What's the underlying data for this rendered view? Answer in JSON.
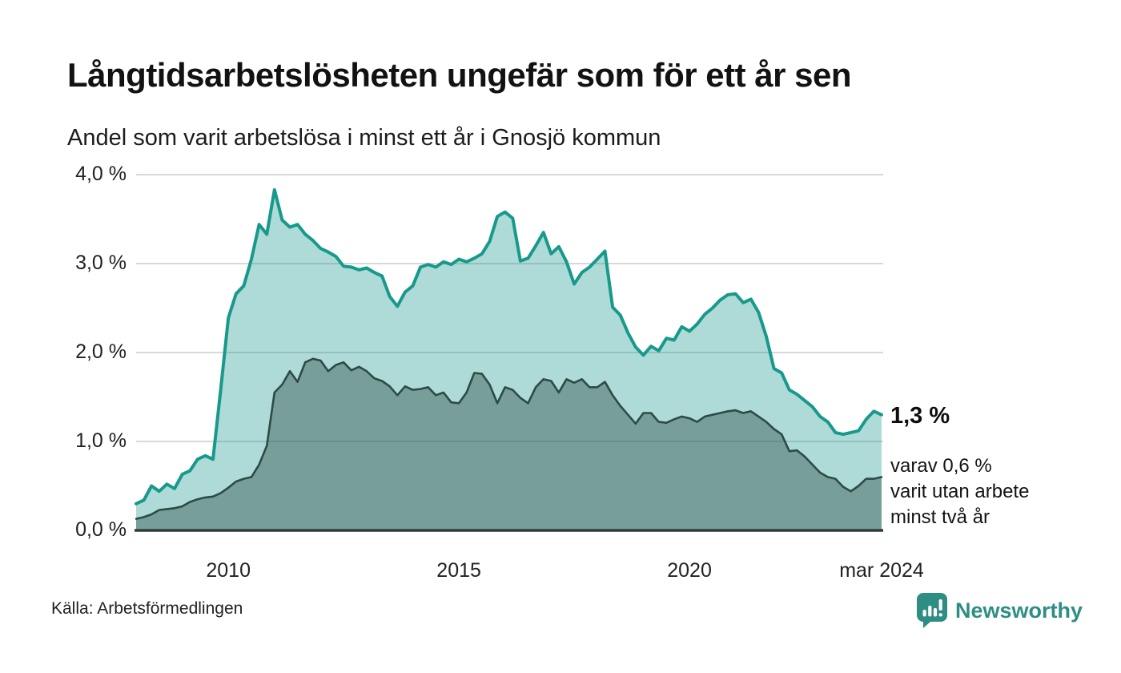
{
  "header": {
    "title": "Långtidsarbetslösheten ungefär som för ett år sen",
    "subtitle": "Andel som varit arbetslösa i minst ett år i Gnosjö kommun"
  },
  "annotation": {
    "value_label": "1,3 %",
    "sub_label": "varav 0,6 %\nvarit utan arbete\nminst två år"
  },
  "footer": {
    "source": "Källa: Arbetsförmedlingen",
    "brand": "Newsworthy",
    "brand_icon": "newsworthy-bubble-bar-chart-icon"
  },
  "colors": {
    "accent_line": "#17998b",
    "accent_fill": "rgba(23,153,139,0.35)",
    "dark_line": "#2d4a46",
    "dark_fill": "rgba(45,74,70,0.42)",
    "gridline": "#d8d8d8",
    "axis": "#2e3d3a",
    "brand": "#2e8e84"
  },
  "chart_data": {
    "type": "area",
    "title": "Långtidsarbetslösheten ungefär som för ett år sen",
    "subtitle": "Andel som varit arbetslösa i minst ett år i Gnosjö kommun",
    "xlabel": "",
    "ylabel": "%",
    "grid": true,
    "x_unit": "decimal_year_monthly",
    "x_range": [
      2008.0,
      2024.1667
    ],
    "y_range": [
      0,
      4
    ],
    "x_start": 2008.0,
    "x_step": 0.1666667,
    "yticks": [
      {
        "value": 4,
        "label": "4,0 %"
      },
      {
        "value": 3,
        "label": "3,0 %"
      },
      {
        "value": 2,
        "label": "2,0 %"
      },
      {
        "value": 1,
        "label": "1,0 %"
      },
      {
        "value": 0,
        "label": "0,0 %"
      }
    ],
    "xticks": [
      {
        "value": 2010,
        "label": "2010"
      },
      {
        "value": 2015,
        "label": "2015"
      },
      {
        "value": 2020,
        "label": "2020"
      },
      {
        "value": 2024.1667,
        "label": "mar 2024"
      }
    ],
    "series": [
      {
        "id": "unemployed-min-one-year",
        "name": "Andel arbetslösa minst ett år",
        "end_value_label": "1,3 %",
        "color": "#17998b",
        "fill": "rgba(23,153,139,0.35)",
        "stroke_width": 4,
        "values": [
          0.3,
          0.34,
          0.5,
          0.44,
          0.52,
          0.47,
          0.63,
          0.67,
          0.8,
          0.84,
          0.8,
          1.58,
          2.39,
          2.66,
          2.75,
          3.05,
          3.44,
          3.33,
          3.83,
          3.49,
          3.41,
          3.44,
          3.33,
          3.26,
          3.17,
          3.13,
          3.08,
          2.97,
          2.96,
          2.93,
          2.95,
          2.9,
          2.86,
          2.63,
          2.52,
          2.68,
          2.75,
          2.96,
          2.99,
          2.96,
          3.02,
          2.99,
          3.05,
          3.02,
          3.06,
          3.11,
          3.25,
          3.53,
          3.58,
          3.51,
          3.03,
          3.06,
          3.2,
          3.35,
          3.11,
          3.19,
          3.02,
          2.77,
          2.9,
          2.96,
          3.05,
          3.14,
          2.51,
          2.42,
          2.22,
          2.06,
          1.97,
          2.07,
          2.02,
          2.16,
          2.14,
          2.29,
          2.24,
          2.32,
          2.43,
          2.5,
          2.59,
          2.65,
          2.66,
          2.56,
          2.6,
          2.45,
          2.18,
          1.82,
          1.77,
          1.58,
          1.53,
          1.46,
          1.39,
          1.28,
          1.22,
          1.1,
          1.08,
          1.1,
          1.12,
          1.25,
          1.34,
          1.3
        ]
      },
      {
        "id": "unemployed-min-two-years",
        "name": "Andel arbetslösa minst två år",
        "end_value_label": "0,6 %",
        "color": "#2d4a46",
        "fill": "rgba(45,74,70,0.42)",
        "stroke_width": 2.6,
        "values": [
          0.13,
          0.15,
          0.18,
          0.23,
          0.24,
          0.25,
          0.27,
          0.32,
          0.35,
          0.37,
          0.38,
          0.42,
          0.48,
          0.55,
          0.58,
          0.6,
          0.74,
          0.95,
          1.55,
          1.64,
          1.79,
          1.67,
          1.89,
          1.93,
          1.91,
          1.79,
          1.86,
          1.89,
          1.8,
          1.84,
          1.79,
          1.71,
          1.68,
          1.62,
          1.52,
          1.62,
          1.58,
          1.59,
          1.61,
          1.52,
          1.55,
          1.44,
          1.43,
          1.55,
          1.77,
          1.76,
          1.64,
          1.43,
          1.61,
          1.58,
          1.49,
          1.43,
          1.61,
          1.7,
          1.68,
          1.55,
          1.7,
          1.66,
          1.7,
          1.61,
          1.61,
          1.67,
          1.52,
          1.4,
          1.3,
          1.2,
          1.32,
          1.32,
          1.22,
          1.21,
          1.25,
          1.28,
          1.26,
          1.22,
          1.28,
          1.3,
          1.32,
          1.34,
          1.35,
          1.32,
          1.34,
          1.28,
          1.22,
          1.14,
          1.08,
          0.89,
          0.9,
          0.83,
          0.74,
          0.65,
          0.6,
          0.58,
          0.49,
          0.44,
          0.5,
          0.58,
          0.58,
          0.6
        ]
      }
    ]
  }
}
